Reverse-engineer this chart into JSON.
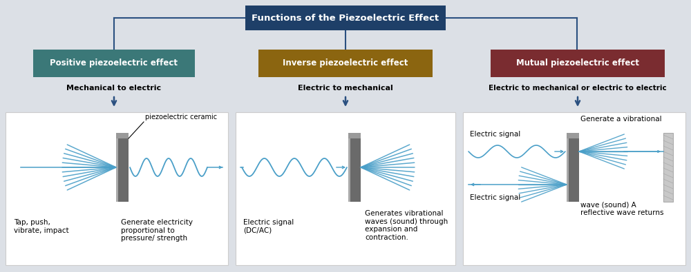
{
  "title": "Functions of the Piezoelectric Effect",
  "title_bg": "#1e3f68",
  "bg_color": "#dce0e6",
  "box1_label": "Positive piezoelectric effect",
  "box1_color": "#3b7878",
  "box2_label": "Inverse piezoelectric effect",
  "box2_color": "#8b6510",
  "box3_label": "Mutual piezoelectric effect",
  "box3_color": "#7a2c30",
  "sub1": "Mechanical to electric",
  "sub2": "Electric to mechanical",
  "sub3": "Electric to mechanical or electric to electric",
  "arrow_color": "#2a5080",
  "wave_color": "#4a9fc8",
  "ceramic_dark": "#606060",
  "ceramic_light": "#909090",
  "panel_bg": "#ffffff",
  "panel_edge": "#cccccc",
  "label1a": "Tap, push,\nvibrate, impact",
  "label1b": "Generate electricity\nproportional to\npressure/ strength",
  "label1c": "piezoelectric ceramic",
  "label2a": "Electric signal\n(DC/AC)",
  "label2b": "Generates vibrational\nwaves (sound) through\nexpansion and\ncontraction.",
  "label3a": "Electric signal",
  "label3b": "Generate a vibrational",
  "label3c": "Electric signal",
  "label3d": "wave (sound) A\nreflective wave returns"
}
